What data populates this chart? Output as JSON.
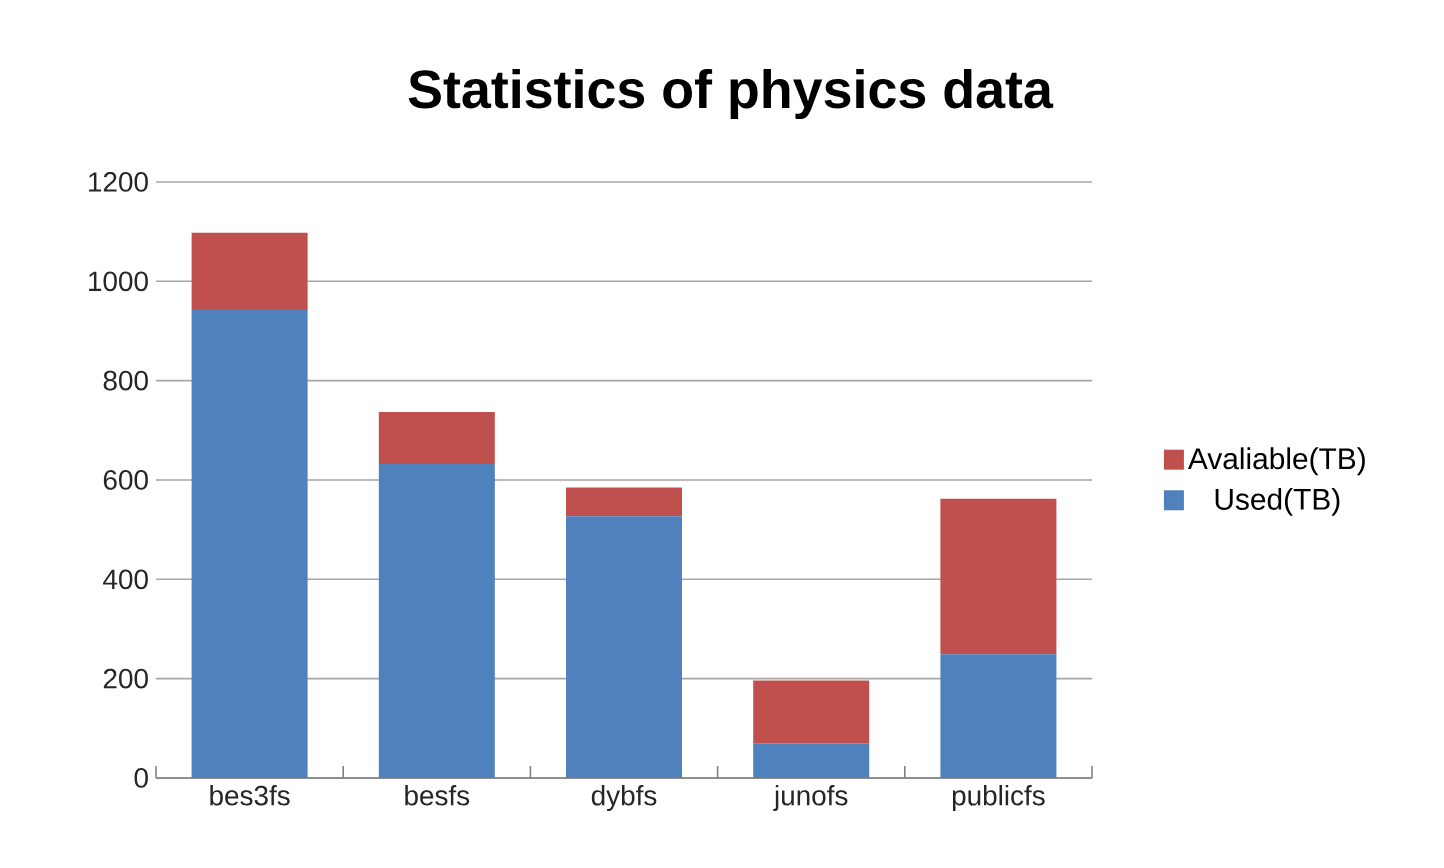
{
  "chart_data": {
    "type": "bar",
    "title": "Statistics of physics data",
    "categories": [
      "bes3fs",
      "besfs",
      "dybfs",
      "junofs",
      "publicfs"
    ],
    "series": [
      {
        "name": "Used(TB)",
        "color": "#4f81bd",
        "values": [
          942,
          632,
          527,
          70,
          249
        ]
      },
      {
        "name": "Avaliable(TB)",
        "color": "#c0504d",
        "values": [
          156,
          105,
          58,
          126,
          313
        ]
      }
    ],
    "stacked": true,
    "ylim": [
      0,
      1200
    ],
    "yticks": [
      0,
      200,
      400,
      600,
      800,
      1000,
      1200
    ],
    "grid": "y",
    "legend": "right"
  }
}
